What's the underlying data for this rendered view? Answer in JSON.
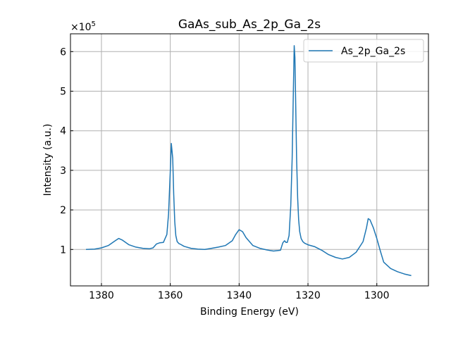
{
  "chart_data": {
    "type": "line",
    "title": "GaAs_sub_As_2p_Ga_2s",
    "xlabel": "Binding Energy (eV)",
    "ylabel": "Intensity (a.u.)",
    "y_scale_label": "×10",
    "y_scale_exponent": "5",
    "x_inverted": true,
    "xlim": [
      1389,
      1285
    ],
    "ylim": [
      8000,
      645000
    ],
    "x_ticks": [
      1380,
      1360,
      1340,
      1320,
      1300
    ],
    "y_ticks": [
      1,
      2,
      3,
      4,
      5,
      6
    ],
    "y_tick_multiplier": 100000,
    "grid": true,
    "legend_position": "top-right",
    "series": [
      {
        "name": "As_2p_Ga_2s",
        "color": "#1f77b4",
        "x": [
          1384.5,
          1382,
          1380,
          1378,
          1376,
          1375,
          1374,
          1372,
          1370,
          1368,
          1366,
          1365,
          1364,
          1363,
          1362,
          1361,
          1360.5,
          1360,
          1359.7,
          1359.3,
          1359,
          1358.7,
          1358.4,
          1358,
          1357.5,
          1357,
          1356,
          1354,
          1352,
          1350,
          1348,
          1346,
          1344,
          1342,
          1341,
          1340,
          1339,
          1338,
          1336,
          1334,
          1332,
          1330,
          1328,
          1327.3,
          1326.8,
          1326.4,
          1326,
          1325.5,
          1325,
          1324.6,
          1324.3,
          1324,
          1323.8,
          1323.6,
          1323.3,
          1323,
          1322.7,
          1322.4,
          1322,
          1321.5,
          1321,
          1320,
          1318,
          1316,
          1314,
          1312,
          1310,
          1308,
          1306,
          1304,
          1303,
          1302.5,
          1302,
          1301,
          1300,
          1299,
          1298,
          1296,
          1294,
          1292,
          1290
        ],
        "y": [
          100000,
          101000,
          104000,
          110000,
          122000,
          128000,
          124000,
          112000,
          106000,
          103000,
          102000,
          104000,
          114000,
          117000,
          118000,
          138000,
          190000,
          300000,
          368000,
          330000,
          240000,
          170000,
          135000,
          120000,
          115000,
          113000,
          108000,
          103000,
          101000,
          100000,
          103000,
          106000,
          110000,
          122000,
          138000,
          150000,
          145000,
          130000,
          110000,
          103000,
          99000,
          96000,
          98000,
          117000,
          122000,
          118000,
          118000,
          135000,
          210000,
          330000,
          470000,
          615000,
          585000,
          480000,
          330000,
          230000,
          175000,
          145000,
          128000,
          120000,
          116000,
          112000,
          107000,
          98000,
          87000,
          80000,
          76000,
          80000,
          93000,
          120000,
          155000,
          178000,
          175000,
          155000,
          128000,
          97000,
          68000,
          52000,
          44000,
          38000,
          34000
        ]
      }
    ]
  }
}
